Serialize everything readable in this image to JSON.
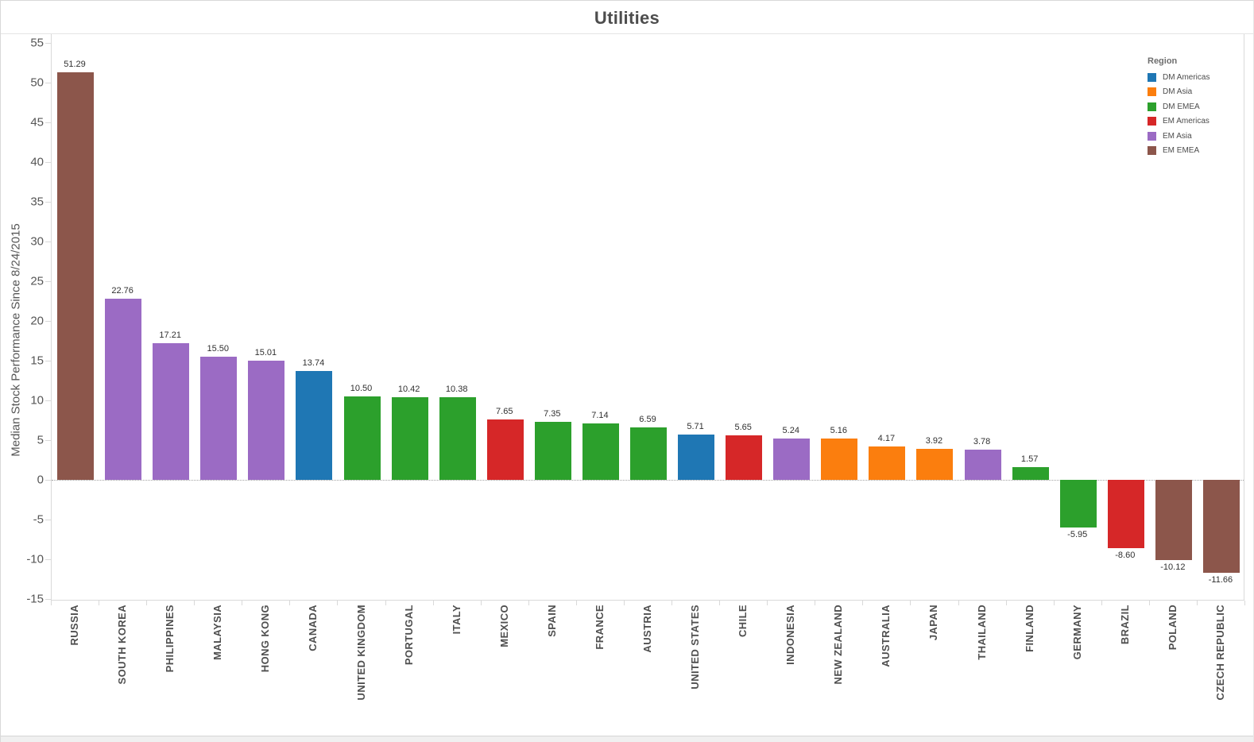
{
  "chart_data": {
    "type": "bar",
    "title": "Utilities",
    "ylabel": "Median Stock Performance Since 8/24/2015",
    "xlabel": "",
    "ylim": [
      -15,
      55
    ],
    "yticks": [
      55,
      50,
      45,
      40,
      35,
      30,
      25,
      20,
      15,
      10,
      5,
      0,
      -5,
      -10,
      -15
    ],
    "grid": "off",
    "zero_line": "dotted",
    "value_label_decimals": 2,
    "categories": [
      "RUSSIA",
      "SOUTH KOREA",
      "PHILIPPINES",
      "MALAYSIA",
      "HONG KONG",
      "CANADA",
      "UNITED KINGDOM",
      "PORTUGAL",
      "ITALY",
      "MEXICO",
      "SPAIN",
      "FRANCE",
      "AUSTRIA",
      "UNITED STATES",
      "CHILE",
      "INDONESIA",
      "NEW ZEALAND",
      "AUSTRALIA",
      "JAPAN",
      "THAILAND",
      "FINLAND",
      "GERMANY",
      "BRAZIL",
      "POLAND",
      "CZECH REPUBLIC"
    ],
    "values": [
      51.29,
      22.76,
      17.21,
      15.5,
      15.01,
      13.74,
      10.5,
      10.42,
      10.38,
      7.65,
      7.35,
      7.14,
      6.59,
      5.71,
      5.65,
      5.24,
      5.16,
      4.17,
      3.92,
      3.78,
      1.57,
      -5.95,
      -8.6,
      -10.12,
      -11.66
    ],
    "regions": [
      "EM EMEA",
      "EM Asia",
      "EM Asia",
      "EM Asia",
      "EM Asia",
      "DM Americas",
      "DM EMEA",
      "DM EMEA",
      "DM EMEA",
      "EM Americas",
      "DM EMEA",
      "DM EMEA",
      "DM EMEA",
      "DM Americas",
      "EM Americas",
      "EM Asia",
      "DM Asia",
      "DM Asia",
      "DM Asia",
      "EM Asia",
      "DM EMEA",
      "DM EMEA",
      "EM Americas",
      "EM EMEA",
      "EM EMEA"
    ],
    "region_colors": {
      "DM Americas": "#1f77b4",
      "DM Asia": "#fb7e0e",
      "DM EMEA": "#2ca02c",
      "EM Americas": "#d62728",
      "EM Asia": "#9b6bc4",
      "EM EMEA": "#8c564b"
    },
    "legend": {
      "title": "Region",
      "position": "top-right",
      "entries": [
        "DM Americas",
        "DM Asia",
        "DM EMEA",
        "EM Americas",
        "EM Asia",
        "EM EMEA"
      ]
    }
  },
  "colors": {
    "title_text": "#4d4d4d",
    "axis_text": "#565656",
    "value_label_text": "#303030",
    "category_label_text": "#4f4f4f",
    "axis_line": "#d9d9d9",
    "zero_line": "#a3a3a3",
    "bottom_strip": "#f0f0f0"
  }
}
